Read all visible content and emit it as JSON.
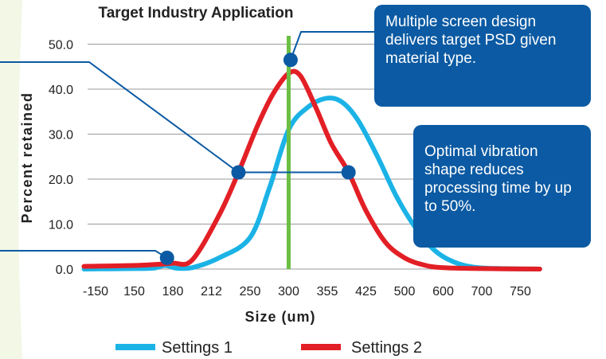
{
  "chart_data": {
    "type": "line",
    "title": "Target Industry Application",
    "xlabel": "Size (um)",
    "ylabel": "Percent retained",
    "categories": [
      "-150",
      "150",
      "180",
      "212",
      "250",
      "300",
      "355",
      "425",
      "500",
      "600",
      "700",
      "750"
    ],
    "y_ticks": [
      "0.0",
      "10.0",
      "20.0",
      "30.0",
      "40.0",
      "50.0"
    ],
    "ylim": [
      0,
      55
    ],
    "grid": "horizontal",
    "legend_placement": "bottom",
    "series": [
      {
        "name": "Settings 1",
        "color": "#1bb3e6",
        "points": [
          [
            -0.3,
            0
          ],
          [
            1.0,
            0.1
          ],
          [
            1.5,
            0.2
          ],
          [
            1.8,
            0.8
          ],
          [
            2.1,
            0.2
          ],
          [
            2.5,
            0.3
          ],
          [
            3.2,
            2.5
          ],
          [
            4.0,
            7
          ],
          [
            4.5,
            18
          ],
          [
            5.0,
            31
          ],
          [
            5.5,
            36
          ],
          [
            6.0,
            38
          ],
          [
            6.4,
            37
          ],
          [
            6.8,
            33
          ],
          [
            7.3,
            25
          ],
          [
            7.8,
            16
          ],
          [
            8.3,
            9
          ],
          [
            8.8,
            4
          ],
          [
            9.3,
            1.5
          ],
          [
            9.8,
            0.4
          ],
          [
            10.5,
            0.1
          ],
          [
            11.5,
            0
          ]
        ]
      },
      {
        "name": "Settings 2",
        "color": "#e31f26",
        "points": [
          [
            -0.3,
            0.6
          ],
          [
            1.0,
            0.8
          ],
          [
            1.5,
            1.0
          ],
          [
            2.0,
            1.3
          ],
          [
            2.5,
            2
          ],
          [
            3.2,
            12
          ],
          [
            3.7,
            21.5
          ],
          [
            4.2,
            32
          ],
          [
            4.6,
            39
          ],
          [
            5.0,
            43.5
          ],
          [
            5.3,
            43
          ],
          [
            5.7,
            36
          ],
          [
            6.1,
            28
          ],
          [
            6.55,
            21.5
          ],
          [
            7.0,
            13
          ],
          [
            7.5,
            6
          ],
          [
            8.0,
            2.5
          ],
          [
            8.5,
            0.9
          ],
          [
            9.0,
            0.3
          ],
          [
            10.0,
            0.1
          ],
          [
            11.5,
            0
          ]
        ]
      }
    ],
    "marker_line": {
      "x": 5.0,
      "color": "#6cbf45"
    },
    "callout_markers": [
      {
        "x": 1.85,
        "y": 2.5
      },
      {
        "x": 3.7,
        "y": 21.5
      },
      {
        "x": 6.55,
        "y": 21.5
      },
      {
        "x": 5.05,
        "y": 46.5
      }
    ],
    "annotations": [
      "Multiple screen design delivers target PSD given material type.",
      "Optimal vibration shape reduces processing time by up to 50%."
    ]
  },
  "colors": {
    "callout_bg": "#0b5aa3",
    "grid": "#9a9a9a",
    "callout_line": "#0b5aa3"
  }
}
